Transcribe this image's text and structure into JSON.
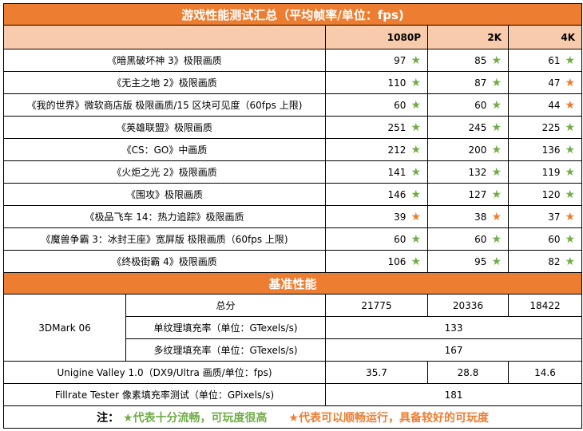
{
  "title": "游戏性能测试汇总（平均帧率/单位：fps)",
  "columns": [
    "1080P",
    "2K",
    "4K"
  ],
  "colors": {
    "header": "#ED7D31",
    "subheader": "#F8CBAD",
    "green_star": "#70AD47",
    "orange_star": "#ED7D31"
  },
  "games": [
    {
      "name": "《暗黑破坏神 3》极限画质",
      "v": [
        "97",
        "85",
        "61"
      ],
      "s": [
        "green",
        "green",
        "green"
      ]
    },
    {
      "name": "《无主之地 2》极限画质",
      "v": [
        "110",
        "87",
        "47"
      ],
      "s": [
        "green",
        "green",
        "orange"
      ]
    },
    {
      "name": "《我的世界》微软商店版 极限画质/15 区块可见度（60fps 上限)",
      "v": [
        "60",
        "60",
        "44"
      ],
      "s": [
        "green",
        "green",
        "orange"
      ]
    },
    {
      "name": "《英雄联盟》极限画质",
      "v": [
        "251",
        "245",
        "225"
      ],
      "s": [
        "green",
        "green",
        "green"
      ]
    },
    {
      "name": "《CS：GO》中画质",
      "v": [
        "212",
        "200",
        "136"
      ],
      "s": [
        "green",
        "green",
        "green"
      ]
    },
    {
      "name": "《火炬之光 2》极限画质",
      "v": [
        "141",
        "132",
        "119"
      ],
      "s": [
        "green",
        "green",
        "green"
      ]
    },
    {
      "name": "《围攻》极限画质",
      "v": [
        "146",
        "127",
        "120"
      ],
      "s": [
        "green",
        "green",
        "green"
      ]
    },
    {
      "name": "《极品飞车 14：热力追踪》极限画质",
      "v": [
        "39",
        "38",
        "37"
      ],
      "s": [
        "orange",
        "orange",
        "orange"
      ]
    },
    {
      "name": "《魔兽争霸 3：冰封王座》宽屏版 极限画质（60fps 上限)",
      "v": [
        "60",
        "60",
        "60"
      ],
      "s": [
        "green",
        "green",
        "green"
      ]
    },
    {
      "name": "《终极街霸 4》极限画质",
      "v": [
        "106",
        "95",
        "82"
      ],
      "s": [
        "green",
        "green",
        "green"
      ]
    }
  ],
  "benchmark": {
    "title": "基准性能",
    "tdmark": "3DMark 06",
    "total_label": "总分",
    "total": [
      "21775",
      "20336",
      "18422"
    ],
    "single_label": "单纹理填充率（单位：GTexels/s)",
    "single": "133",
    "multi_label": "多纹理填充率（单位：GTexels/s)",
    "multi": "167",
    "valley_label": "Unigine Valley 1.0（DX9/Ultra 画质/单位：fps)",
    "valley": [
      "35.7",
      "28.8",
      "14.6"
    ],
    "fill_label": "Fillrate Tester 像素填充率测试（单位：GPixels/s)",
    "fill": "181"
  },
  "note": {
    "prefix": "注：",
    "green": "★代表十分流畅，可玩度很高",
    "orange": "★代表可以顺畅运行，具备较好的可玩度"
  }
}
